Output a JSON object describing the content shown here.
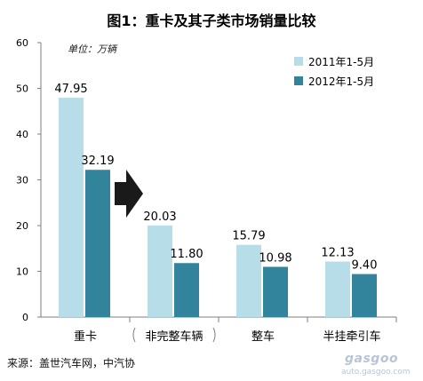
{
  "page": {
    "title": "图1：重卡及其子类市场销量比较",
    "unit_note": "单位：万辆",
    "source": "来源：盖世汽车网，中汽协",
    "watermark": "gasgoo",
    "watermark_url": "auto.gasgoo.com"
  },
  "colors": {
    "series_2011": "#b7dde8",
    "series_2012": "#31849b",
    "arrow": "#1a1a1a",
    "axis": "#7f7f7f"
  },
  "chart_data": {
    "type": "bar",
    "categories": [
      "重卡",
      "非完整车辆",
      "整车",
      "半挂牵引车"
    ],
    "series": [
      {
        "name": "2011年1-5月",
        "values": [
          47.95,
          20.03,
          15.79,
          12.13
        ]
      },
      {
        "name": "2012年1-5月",
        "values": [
          32.19,
          11.8,
          10.98,
          9.4
        ]
      }
    ],
    "data_labels": [
      [
        "47.95",
        "20.03",
        "15.79",
        "12.13"
      ],
      [
        "32.19",
        "11.80",
        "10.98",
        "9.40"
      ]
    ],
    "ylim": [
      0,
      60
    ],
    "yticks": [
      0,
      10,
      20,
      30,
      40,
      50,
      60
    ],
    "grid": false,
    "legend_position": "top-right",
    "annotation": "arrow pointing right between first and second category"
  }
}
